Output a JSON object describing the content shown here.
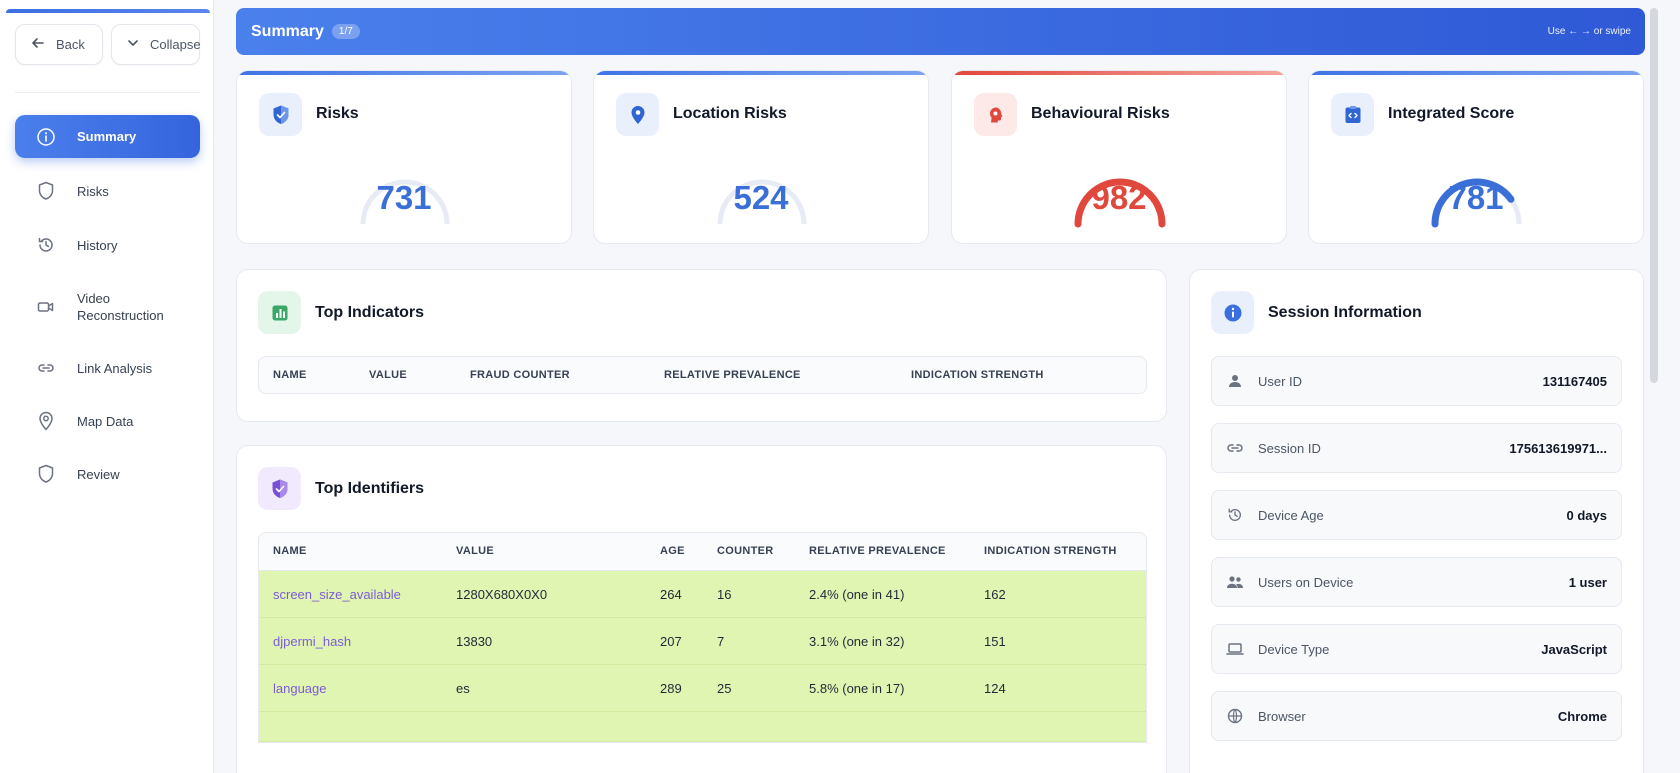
{
  "sidebar": {
    "back_label": "Back",
    "collapse_label": "Collapse",
    "items": [
      {
        "label": "Summary",
        "icon": "info-icon"
      },
      {
        "label": "Risks",
        "icon": "shield-icon"
      },
      {
        "label": "History",
        "icon": "history-icon"
      },
      {
        "label": "Video Reconstruction",
        "icon": "video-icon"
      },
      {
        "label": "Link Analysis",
        "icon": "link-icon"
      },
      {
        "label": "Map Data",
        "icon": "map-pin-icon"
      },
      {
        "label": "Review",
        "icon": "shield-icon"
      }
    ],
    "active_item": "Summary"
  },
  "header": {
    "title": "Summary",
    "badge": "1/7",
    "hint": "Use ← → or swipe"
  },
  "risk_cards": [
    {
      "title": "Risks",
      "value": "731",
      "icon": "shield-icon",
      "level": 0,
      "color": "#3a6fd8"
    },
    {
      "title": "Location Risks",
      "value": "524",
      "icon": "map-pin-icon",
      "level": 0,
      "color": "#3a6fd8"
    },
    {
      "title": "Behavioural Risks",
      "value": "982",
      "icon": "brain-icon",
      "level": 1,
      "color": "#e0473d"
    },
    {
      "title": "Integrated Score",
      "value": "781",
      "icon": "code-icon",
      "level": 0.8,
      "color": "#3a6fd8"
    }
  ],
  "top_indicators": {
    "title": "Top Indicators",
    "columns": [
      "NAME",
      "VALUE",
      "FRAUD COUNTER",
      "RELATIVE PREVALENCE",
      "INDICATION STRENGTH"
    ]
  },
  "top_identifiers": {
    "title": "Top Identifiers",
    "columns": [
      "NAME",
      "VALUE",
      "AGE",
      "COUNTER",
      "RELATIVE PREVALENCE",
      "INDICATION STRENGTH"
    ],
    "rows": [
      {
        "name": "screen_size_available",
        "value": "1280X680X0X0",
        "age": "264",
        "counter": "16",
        "prevalence": "2.4% (one in 41)",
        "strength": "162"
      },
      {
        "name": "djpermi_hash",
        "value": "13830",
        "age": "207",
        "counter": "7",
        "prevalence": "3.1% (one in 32)",
        "strength": "151"
      },
      {
        "name": "language",
        "value": "es",
        "age": "289",
        "counter": "25",
        "prevalence": "5.8% (one in 17)",
        "strength": "124"
      }
    ]
  },
  "session_info": {
    "title": "Session Information",
    "items": [
      {
        "label": "User ID",
        "value": "131167405",
        "icon": "user-icon"
      },
      {
        "label": "Session ID",
        "value": "175613619971...",
        "icon": "link-icon"
      },
      {
        "label": "Device Age",
        "value": "0 days",
        "icon": "history-icon"
      },
      {
        "label": "Users on Device",
        "value": "1 user",
        "icon": "users-icon"
      },
      {
        "label": "Device Type",
        "value": "JavaScript",
        "icon": "laptop-icon"
      },
      {
        "label": "Browser",
        "value": "Chrome",
        "icon": "globe-icon"
      }
    ]
  },
  "colors": {
    "accent": "#3b6fe0",
    "danger": "#e0473d",
    "row_highlight": "#e1f5b3",
    "link": "#7a5bd6"
  }
}
